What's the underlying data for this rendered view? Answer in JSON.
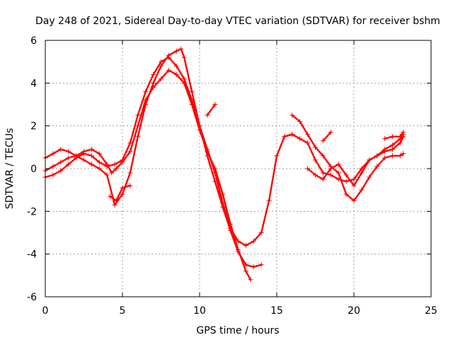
{
  "chart_data": {
    "type": "scatter",
    "title": "Day 248 of 2021, Sidereal Day-to-day VTEC variation (SDTVAR) for receiver bshm",
    "xlabel": "GPS time / hours",
    "ylabel": "SDTVAR / TECUs",
    "xlim": [
      0,
      25
    ],
    "ylim": [
      -6,
      6
    ],
    "xticks": [
      0,
      5,
      10,
      15,
      20,
      25
    ],
    "yticks": [
      -6,
      -4,
      -2,
      0,
      2,
      4,
      6
    ],
    "xtick_labels": [
      "0",
      "5",
      "10",
      "15",
      "20",
      "25"
    ],
    "ytick_labels": [
      "-6",
      "-4",
      "-2",
      "0",
      "2",
      "4",
      "6"
    ],
    "grid": true,
    "marker": "+",
    "color": "#ff0000",
    "series": [
      {
        "name": "trace-a",
        "x": [
          0.0,
          0.5,
          1.0,
          1.5,
          2.0,
          2.5,
          3.0,
          3.5,
          4.0,
          4.3,
          4.6,
          5.0,
          5.5,
          6.0,
          6.5,
          7.0,
          7.5,
          8.0,
          8.5,
          9.0,
          9.5,
          10.0,
          10.5,
          11.0,
          11.5,
          12.0,
          12.5,
          13.0,
          13.3
        ],
        "y": [
          0.5,
          0.7,
          0.9,
          0.8,
          0.6,
          0.8,
          0.9,
          0.7,
          0.2,
          -0.2,
          0.0,
          0.3,
          0.8,
          2.0,
          3.2,
          3.8,
          4.2,
          4.6,
          4.4,
          4.0,
          3.0,
          1.8,
          0.8,
          0.0,
          -1.2,
          -2.6,
          -3.8,
          -4.8,
          -5.2
        ]
      },
      {
        "name": "trace-b",
        "x": [
          0.0,
          0.5,
          1.0,
          1.5,
          2.0,
          2.5,
          3.0,
          3.5,
          4.0,
          4.5,
          5.0,
          5.5,
          6.0,
          6.5,
          7.0,
          7.5,
          8.0,
          8.5,
          8.8,
          9.0,
          9.5,
          10.0,
          10.5,
          11.0,
          11.5,
          12.0,
          12.5,
          13.0,
          13.5,
          14.0
        ],
        "y": [
          -0.1,
          0.1,
          0.3,
          0.5,
          0.6,
          0.4,
          0.2,
          0.0,
          -0.3,
          -1.7,
          -1.2,
          -0.2,
          1.5,
          3.0,
          4.0,
          4.8,
          5.3,
          5.5,
          5.6,
          5.2,
          3.6,
          2.0,
          0.6,
          -0.6,
          -1.8,
          -2.9,
          -3.9,
          -4.5,
          -4.6,
          -4.5
        ]
      },
      {
        "name": "trace-c",
        "x": [
          0.0,
          0.5,
          1.0,
          1.5,
          2.0,
          2.5,
          3.0,
          3.5,
          4.0,
          4.5,
          5.0,
          5.5,
          6.0,
          6.5,
          7.0,
          7.5,
          8.0,
          8.5,
          9.0,
          9.5,
          10.0,
          10.5,
          11.0,
          11.5,
          12.0,
          12.5,
          13.0,
          13.5,
          14.0,
          14.5,
          15.0,
          15.5,
          16.0
        ],
        "y": [
          -0.4,
          -0.3,
          -0.1,
          0.2,
          0.5,
          0.7,
          0.6,
          0.3,
          0.1,
          0.2,
          0.4,
          1.2,
          2.5,
          3.6,
          4.4,
          5.0,
          5.2,
          4.8,
          4.2,
          3.2,
          2.0,
          0.9,
          -0.2,
          -1.6,
          -2.8,
          -3.4,
          -3.6,
          -3.4,
          -3.0,
          -1.5,
          0.6,
          1.5,
          1.6
        ]
      },
      {
        "name": "trace-d",
        "x": [
          15.5,
          16.0,
          16.5,
          17.0,
          17.5,
          18.0,
          18.5,
          19.0,
          19.5,
          20.0,
          20.5,
          21.0,
          21.5,
          22.0,
          22.5,
          23.0,
          23.2
        ],
        "y": [
          1.5,
          1.6,
          1.4,
          1.2,
          0.4,
          -0.2,
          -0.3,
          -0.5,
          -0.6,
          -0.5,
          0.0,
          0.4,
          0.6,
          0.8,
          0.9,
          1.2,
          1.5
        ]
      },
      {
        "name": "trace-e",
        "x": [
          16.0,
          16.5,
          17.0,
          17.5,
          18.0,
          18.5,
          19.0,
          19.5,
          20.0,
          20.5,
          21.0,
          21.5,
          22.0,
          22.5,
          23.0,
          23.2
        ],
        "y": [
          2.5,
          2.2,
          1.6,
          1.0,
          0.6,
          0.1,
          -0.2,
          -1.2,
          -1.5,
          -1.0,
          -0.4,
          0.1,
          0.5,
          0.6,
          0.6,
          0.7
        ]
      },
      {
        "name": "trace-f",
        "x": [
          17.0,
          17.5,
          18.0,
          18.5,
          19.0,
          19.5,
          20.0,
          20.5,
          21.0,
          21.5,
          22.0,
          22.5,
          23.0,
          23.2
        ],
        "y": [
          0.0,
          -0.3,
          -0.5,
          0.0,
          0.2,
          -0.3,
          -0.8,
          -0.2,
          0.4,
          0.6,
          0.9,
          1.1,
          1.4,
          1.6
        ]
      },
      {
        "name": "segment-g",
        "x": [
          4.2,
          4.6,
          5.0,
          5.5
        ],
        "y": [
          -1.3,
          -1.5,
          -0.9,
          -0.8
        ]
      },
      {
        "name": "segment-h",
        "x": [
          10.5,
          11.0
        ],
        "y": [
          2.5,
          3.0
        ]
      },
      {
        "name": "segment-i",
        "x": [
          18.0,
          18.5
        ],
        "y": [
          1.3,
          1.7
        ]
      },
      {
        "name": "segment-j",
        "x": [
          22.0,
          22.5,
          23.0,
          23.2
        ],
        "y": [
          1.4,
          1.5,
          1.5,
          1.7
        ]
      }
    ]
  }
}
